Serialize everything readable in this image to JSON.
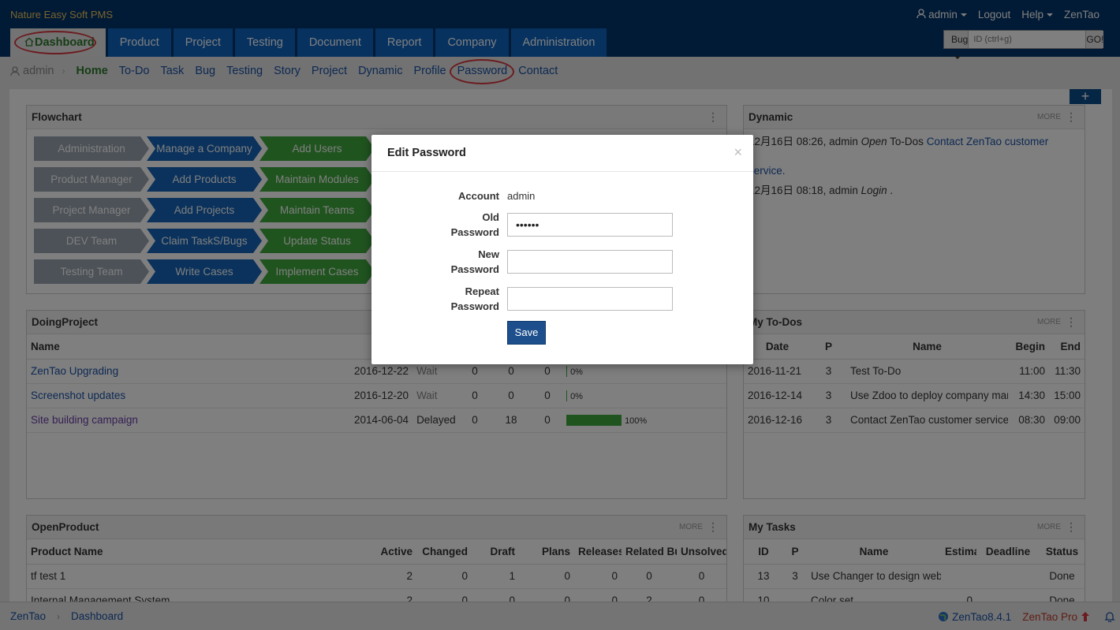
{
  "brand": "Nature Easy Soft PMS",
  "topbar": {
    "user": "admin",
    "logout": "Logout",
    "help": "Help",
    "product": "ZenTao"
  },
  "mainnav": [
    "Dashboard",
    "Product",
    "Project",
    "Testing",
    "Document",
    "Report",
    "Company",
    "Administration"
  ],
  "search": {
    "type": "Bug",
    "placeholder": "ID (ctrl+g)",
    "go": "GO!"
  },
  "subnav": {
    "user": "admin",
    "items": [
      "Home",
      "To-Do",
      "Task",
      "Bug",
      "Testing",
      "Story",
      "Project",
      "Dynamic",
      "Profile",
      "Password",
      "Contact"
    ]
  },
  "flowchart": {
    "title": "Flowchart",
    "rows": [
      [
        "Administration",
        "Manage a Company",
        "Add Users"
      ],
      [
        "Product Manager",
        "Add Products",
        "Maintain Modules"
      ],
      [
        "Project Manager",
        "Add Projects",
        "Maintain Teams"
      ],
      [
        "DEV Team",
        "Claim TaskS/Bugs",
        "Update Status"
      ],
      [
        "Testing Team",
        "Write Cases",
        "Implement Cases"
      ]
    ]
  },
  "dynamic": {
    "title": "Dynamic",
    "more": "MORE",
    "items": [
      {
        "time": "12月16日 08:26, admin",
        "action": "Open",
        "obj": "To-Dos",
        "link": "Contact ZenTao customer service."
      },
      {
        "time": "12月16日 08:18, admin",
        "action": "Login",
        "obj": "",
        "link": "."
      }
    ]
  },
  "doing_project": {
    "title": "DoingProject",
    "header": "Name",
    "rows": [
      {
        "name": "ZenTao Upgrading",
        "end": "2016-12-22",
        "status": "Wait",
        "a": "0",
        "b": "0",
        "c": "0",
        "progress": 0,
        "progress_label": "0%"
      },
      {
        "name": "Screenshot updates",
        "end": "2016-12-20",
        "status": "Wait",
        "a": "0",
        "b": "0",
        "c": "0",
        "progress": 0,
        "progress_label": "0%"
      },
      {
        "name": "Site building campaign",
        "end": "2014-06-04",
        "status": "Delayed",
        "a": "0",
        "b": "18",
        "c": "0",
        "progress": 1,
        "progress_label": "100%"
      }
    ]
  },
  "todos": {
    "title": "My To-Dos",
    "more": "MORE",
    "headers": [
      "Date",
      "P",
      "Name",
      "Begin",
      "End"
    ],
    "rows": [
      [
        "2016-11-21",
        "3",
        "Test To-Do",
        "11:00",
        "11:30"
      ],
      [
        "2016-12-14",
        "3",
        "Use Zdoo to deploy company management",
        "14:30",
        "15:00"
      ],
      [
        "2016-12-16",
        "3",
        "Contact ZenTao customer service",
        "08:30",
        "09:00"
      ]
    ]
  },
  "open_product": {
    "title": "OpenProduct",
    "more": "MORE",
    "headers": [
      "Product Name",
      "Active",
      "Changed",
      "Draft",
      "Plans",
      "Releases",
      "Related Bugs",
      "Unsolved"
    ],
    "rows": [
      [
        "tf test 1",
        "2",
        "0",
        "1",
        "0",
        "0",
        "0",
        "0"
      ],
      [
        "Internal Management System",
        "2",
        "0",
        "0",
        "0",
        "0",
        "2",
        "0"
      ]
    ]
  },
  "my_tasks": {
    "title": "My Tasks",
    "more": "MORE",
    "headers": [
      "ID",
      "P",
      "Name",
      "Estimate",
      "Deadline",
      "Status"
    ],
    "rows": [
      [
        "13",
        "3",
        "Use Changer to design website",
        "",
        "",
        "Done"
      ],
      [
        "10",
        "",
        "Color set",
        "0",
        "",
        "Done"
      ]
    ]
  },
  "footer": {
    "crumbs": [
      "ZenTao",
      "Dashboard"
    ],
    "version": "ZenTao8.4.1",
    "pro": "ZenTao Pro"
  },
  "modal": {
    "title": "Edit Password",
    "close": "×",
    "account_label": "Account",
    "account_value": "admin",
    "old_label_1": "Old",
    "old_label_2": "Password",
    "old_value": "••••••",
    "new_label_1": "New",
    "new_label_2": "Password",
    "new_value": "",
    "repeat_label_1": "Repeat",
    "repeat_label_2": "Password",
    "repeat_value": "",
    "save": "Save"
  },
  "colors": {
    "header": "#03356b",
    "nav": "#0f65c0",
    "flow_gray": "#9aa5b1",
    "flow_blue": "#1564b8",
    "flow_green": "#41a83e",
    "annotation": "#d9363e"
  }
}
